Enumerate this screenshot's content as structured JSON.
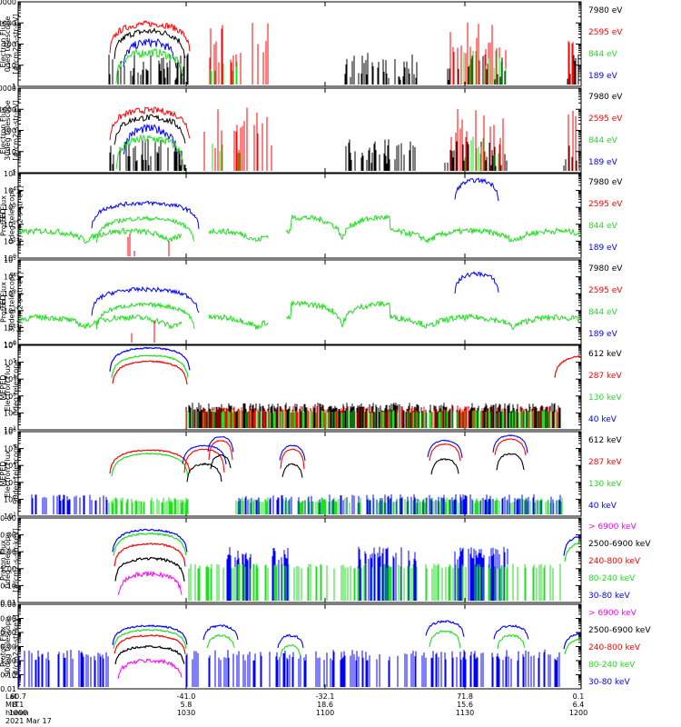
{
  "colors": {
    "black": "#000000",
    "red": "#ff0000",
    "green": "#22dd22",
    "blue": "#0000ff",
    "magenta": "#ff00ff"
  },
  "footer": {
    "rows": [
      {
        "label": "Lat",
        "values": [
          "60.7",
          "-41.0",
          "-32.1",
          "71.8",
          "0.1"
        ]
      },
      {
        "label": "MLT",
        "values": [
          "8.1",
          "5.8",
          "18.6",
          "15.6",
          "6.4"
        ]
      },
      {
        "label": "hhmm",
        "values": [
          "1000",
          "1030",
          "1100",
          "1130",
          "1200"
        ]
      }
    ],
    "date": "2021 Mar 17"
  },
  "chart_data": [
    {
      "type": "line",
      "log_y": true,
      "ylim": [
        1,
        10000
      ],
      "ylabel": [
        "Electron Flux",
        "0deg telescope",
        "[#/cm2-s-str-eV]"
      ],
      "yticks": [
        "1",
        "10",
        "100",
        "1000",
        "10000"
      ],
      "series": [
        {
          "name": "7980 eV",
          "color": "black"
        },
        {
          "name": "2595 eV",
          "color": "red"
        },
        {
          "name": "844 eV",
          "color": "green"
        },
        {
          "name": "189 eV",
          "color": "blue"
        }
      ]
    },
    {
      "type": "line",
      "log_y": true,
      "ylim": [
        1,
        10000
      ],
      "ylabel": [
        "Electron Flux",
        "30deg telescope",
        "[#/cm2-s-str-eV]"
      ],
      "yticks": [
        "1",
        "10",
        "100",
        "1000",
        "10000"
      ],
      "series": [
        {
          "name": "7980 eV",
          "color": "black"
        },
        {
          "name": "2595 eV",
          "color": "red"
        },
        {
          "name": "844 eV",
          "color": "green"
        },
        {
          "name": "189 eV",
          "color": "blue"
        }
      ]
    },
    {
      "type": "line",
      "log_y": true,
      "ylim": [
        1,
        100000
      ],
      "ylabel": [
        "TED",
        "Proton Flux",
        "0deg telescope",
        "[#/cm2-s-str-eV]"
      ],
      "yticks": [
        "10^0",
        "10^1",
        "10^2",
        "10^3",
        "10^4",
        "10^5"
      ],
      "series": [
        {
          "name": "7980 eV",
          "color": "black"
        },
        {
          "name": "2595 eV",
          "color": "red"
        },
        {
          "name": "844 eV",
          "color": "green"
        },
        {
          "name": "189 eV",
          "color": "blue"
        }
      ]
    },
    {
      "type": "line",
      "log_y": true,
      "ylim": [
        1,
        100000
      ],
      "ylabel": [
        "TED",
        "Proton Flux",
        "30deg telescope",
        "[#/cm2-s-str-eV]"
      ],
      "yticks": [
        "10^0",
        "10^1",
        "10^2",
        "10^3",
        "10^4",
        "10^5"
      ],
      "series": [
        {
          "name": "7980 eV",
          "color": "black"
        },
        {
          "name": "2595 eV",
          "color": "red"
        },
        {
          "name": "844 eV",
          "color": "green"
        },
        {
          "name": "189 eV",
          "color": "blue"
        }
      ]
    },
    {
      "type": "line",
      "log_y": true,
      "ylim": [
        10,
        1000000
      ],
      "ylabel": [
        "MEPED",
        "Electron Flux",
        "0deg telescope"
      ],
      "yticks": [
        "10^1",
        "10^2",
        "10^3",
        "10^4",
        "10^5",
        "10^6"
      ],
      "series": [
        {
          "name": "612 keV",
          "color": "black"
        },
        {
          "name": "287 keV",
          "color": "red"
        },
        {
          "name": "130 keV",
          "color": "green"
        },
        {
          "name": "40 keV",
          "color": "blue"
        }
      ]
    },
    {
      "type": "line",
      "log_y": true,
      "ylim": [
        10,
        1000000
      ],
      "ylabel": [
        "MEPED",
        "Electron Flux",
        "90deg telescope"
      ],
      "yticks": [
        "10^1",
        "10^2",
        "10^3",
        "10^4",
        "10^5",
        "10^6"
      ],
      "series": [
        {
          "name": "612 keV",
          "color": "black"
        },
        {
          "name": "287 keV",
          "color": "red"
        },
        {
          "name": "130 keV",
          "color": "green"
        },
        {
          "name": "40 keV",
          "color": "blue"
        }
      ]
    },
    {
      "type": "line",
      "log_y": true,
      "ylim": [
        0.01,
        1000
      ],
      "ylabel": [
        "Proton Flux",
        "0deg telescope",
        "[#/cm2-s-str-keV]"
      ],
      "yticks": [
        "0.01",
        "0.10",
        "1.00",
        "10.00",
        "100.00",
        "1000.00"
      ],
      "series": [
        {
          "name": "> 6900 keV",
          "color": "magenta"
        },
        {
          "name": "2500-6900 keV",
          "color": "black"
        },
        {
          "name": "240-800 keV",
          "color": "red"
        },
        {
          "name": "80-240 keV",
          "color": "green"
        },
        {
          "name": "30-80 keV",
          "color": "blue"
        }
      ]
    },
    {
      "type": "line",
      "log_y": true,
      "ylim": [
        0.01,
        10000
      ],
      "ylabel": [
        "Proton Flux",
        "90deg telescope",
        "[#/cm2-s-str-keV]"
      ],
      "yticks": [
        "0.01",
        "0.10",
        "1.00",
        "10.00",
        "100.00",
        "1000.00",
        "10000.00"
      ],
      "series": [
        {
          "name": "> 6900 keV",
          "color": "magenta"
        },
        {
          "name": "2500-6900 keV",
          "color": "black"
        },
        {
          "name": "240-800 keV",
          "color": "red"
        },
        {
          "name": "80-240 keV",
          "color": "green"
        },
        {
          "name": "30-80 keV",
          "color": "blue"
        }
      ]
    }
  ]
}
